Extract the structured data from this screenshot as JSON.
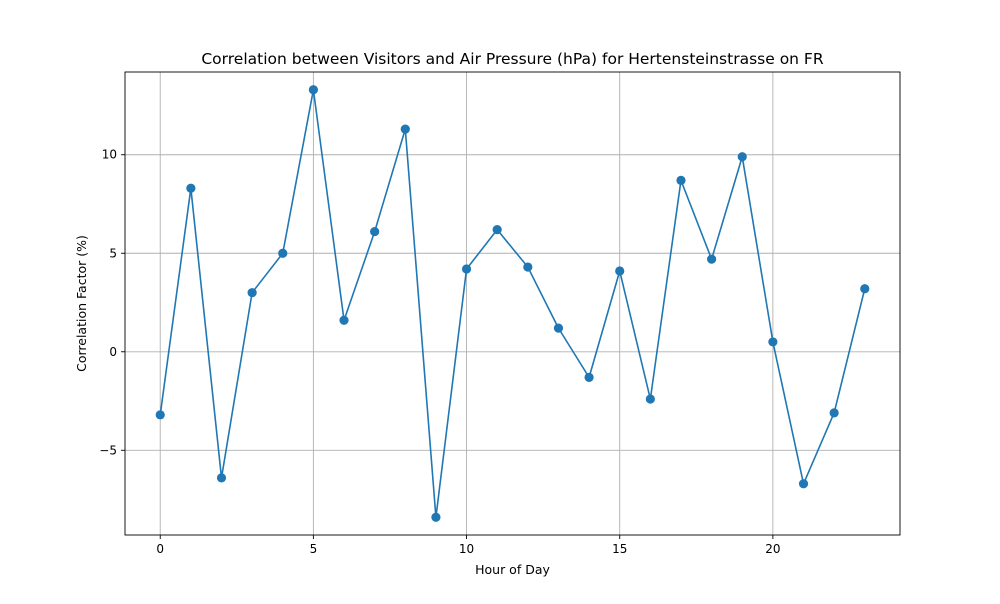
{
  "chart_data": {
    "type": "line",
    "title": "Correlation between Visitors and Air Pressure (hPa) for Hertensteinstrasse on FR",
    "xlabel": "Hour of Day",
    "ylabel": "Correlation Factor (%)",
    "x": [
      0,
      1,
      2,
      3,
      4,
      5,
      6,
      7,
      8,
      9,
      10,
      11,
      12,
      13,
      14,
      15,
      16,
      17,
      18,
      19,
      20,
      21,
      22,
      23
    ],
    "series": [
      {
        "values": [
          -3.2,
          8.3,
          -6.4,
          3.0,
          5.0,
          13.3,
          1.6,
          6.1,
          11.3,
          -8.4,
          4.2,
          6.2,
          4.3,
          1.2,
          -1.3,
          4.1,
          -2.4,
          8.7,
          4.7,
          9.9,
          0.5,
          -6.7,
          -3.1,
          3.2
        ],
        "color": "#1f77b4",
        "marker": "circle"
      }
    ],
    "xlim": [
      -1.15,
      24.15
    ],
    "ylim": [
      -9.3,
      14.2
    ],
    "xticks": [
      0,
      5,
      10,
      15,
      20
    ],
    "xtick_labels": [
      "0",
      "5",
      "10",
      "15",
      "20"
    ],
    "yticks": [
      -5,
      0,
      5,
      10
    ],
    "ytick_labels": [
      "−5",
      "0",
      "5",
      "10"
    ],
    "grid": true
  }
}
